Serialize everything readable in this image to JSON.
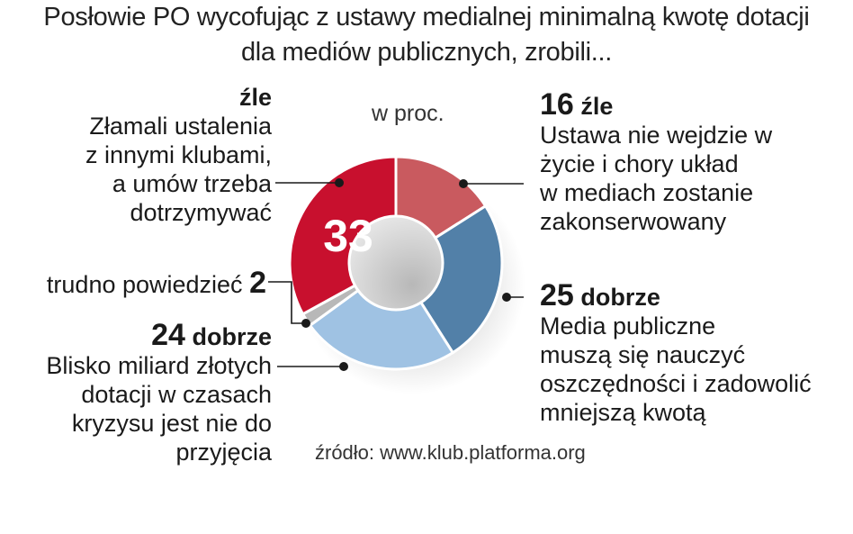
{
  "title": {
    "line1": "Posłowie PO wycofując z ustawy medialnej minimalną kwotę dotacji",
    "line2": "dla mediów publicznych, zrobili..."
  },
  "unit_label": "w proc.",
  "source": "źródło: www.klub.platforma.org",
  "colors": {
    "zle_33": "#c8102e",
    "zle_16": "#c95a5f",
    "dobrze_25": "#5280a8",
    "dobrze_24": "#9fc2e3",
    "trudno_2": "#b8b8b8"
  },
  "chart_data": {
    "type": "pie",
    "variant": "donut",
    "unit": "w proc.",
    "slices": [
      {
        "value": 16,
        "value_text": "16",
        "verdict": "źle",
        "description": [
          "Ustawa nie wejdzie w",
          "życie i chory układ",
          "w mediach zostanie",
          "zakonserwowany"
        ],
        "color": "#c95a5f"
      },
      {
        "value": 25,
        "value_text": "25",
        "verdict": "dobrze",
        "description": [
          "Media publiczne",
          "muszą się nauczyć",
          "oszczędności i zadowolić",
          "mniejszą kwotą"
        ],
        "color": "#5280a8"
      },
      {
        "value": 24,
        "value_text": "24",
        "verdict": "dobrze",
        "description": [
          "Blisko miliard złotych",
          "dotacji w czasach",
          "kryzysu jest nie do",
          "przyjęcia"
        ],
        "color": "#9fc2e3"
      },
      {
        "value": 2,
        "value_text": "2",
        "verdict": "trudno powiedzieć",
        "description": [],
        "color": "#b8b8b8"
      },
      {
        "value": 33,
        "value_text": "33",
        "verdict": "źle",
        "description": [
          "Złamali ustalenia",
          "z innymi klubami,",
          "a umów trzeba",
          "dotrzymywać"
        ],
        "color": "#c8102e"
      }
    ]
  }
}
